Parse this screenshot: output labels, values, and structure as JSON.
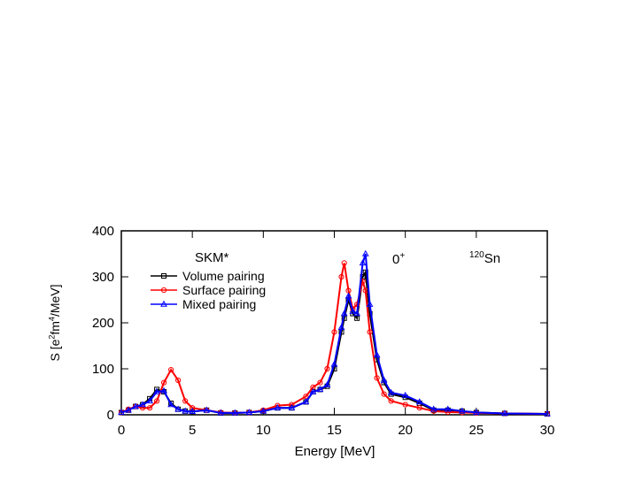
{
  "chart_data": {
    "type": "line",
    "xlabel": "Energy [MeV]",
    "ylabel": [
      {
        "text": "S [e"
      },
      {
        "sup": "2"
      },
      {
        "text": "fm"
      },
      {
        "sup": "4"
      },
      {
        "text": "/MeV]"
      }
    ],
    "annotations": [
      {
        "parts": [
          {
            "text": "SKM*"
          }
        ]
      },
      {
        "parts": [
          {
            "text": "0"
          },
          {
            "sup": "+"
          }
        ]
      },
      {
        "parts": [
          {
            "sup": "120"
          },
          {
            "text": "Sn"
          }
        ]
      }
    ],
    "xlim": [
      0,
      30
    ],
    "xticks": [
      0,
      5,
      10,
      15,
      20,
      25,
      30
    ],
    "ylim": [
      0,
      400
    ],
    "yticks": [
      0,
      100,
      200,
      300,
      400
    ],
    "legend": "upper left",
    "x": [
      0,
      0.5,
      1,
      1.5,
      2,
      2.5,
      3,
      3.5,
      4,
      4.5,
      5,
      6,
      7,
      8,
      9,
      10,
      11,
      12,
      13,
      13.5,
      14,
      14.5,
      15,
      15.5,
      15.7,
      16,
      16.3,
      16.6,
      17,
      17.2,
      17.5,
      18,
      18.5,
      19,
      20,
      21,
      22,
      23,
      24,
      25,
      27,
      30
    ],
    "series": [
      {
        "name": "Volume pairing",
        "color": "#000000",
        "marker": "square",
        "values": [
          5,
          10,
          18,
          22,
          35,
          55,
          50,
          25,
          12,
          8,
          7,
          10,
          4,
          4,
          5,
          8,
          15,
          15,
          28,
          50,
          55,
          62,
          100,
          180,
          210,
          250,
          220,
          210,
          300,
          310,
          220,
          120,
          70,
          45,
          38,
          25,
          10,
          10,
          8,
          5,
          3,
          2
        ]
      },
      {
        "name": "Surface pairing",
        "color": "#ff0000",
        "marker": "circle",
        "values": [
          5,
          12,
          18,
          15,
          15,
          30,
          70,
          98,
          75,
          30,
          15,
          10,
          5,
          4,
          5,
          10,
          20,
          22,
          40,
          60,
          70,
          100,
          180,
          300,
          330,
          270,
          230,
          240,
          290,
          270,
          180,
          80,
          45,
          30,
          22,
          15,
          8,
          6,
          5,
          4,
          3,
          2
        ]
      },
      {
        "name": "Mixed pairing",
        "color": "#0000ff",
        "marker": "triangle",
        "values": [
          5,
          10,
          18,
          22,
          30,
          50,
          52,
          22,
          12,
          8,
          7,
          10,
          4,
          4,
          5,
          8,
          15,
          15,
          28,
          50,
          55,
          65,
          110,
          190,
          220,
          258,
          225,
          220,
          330,
          350,
          240,
          130,
          75,
          48,
          42,
          28,
          12,
          12,
          8,
          5,
          3,
          2
        ]
      }
    ]
  }
}
